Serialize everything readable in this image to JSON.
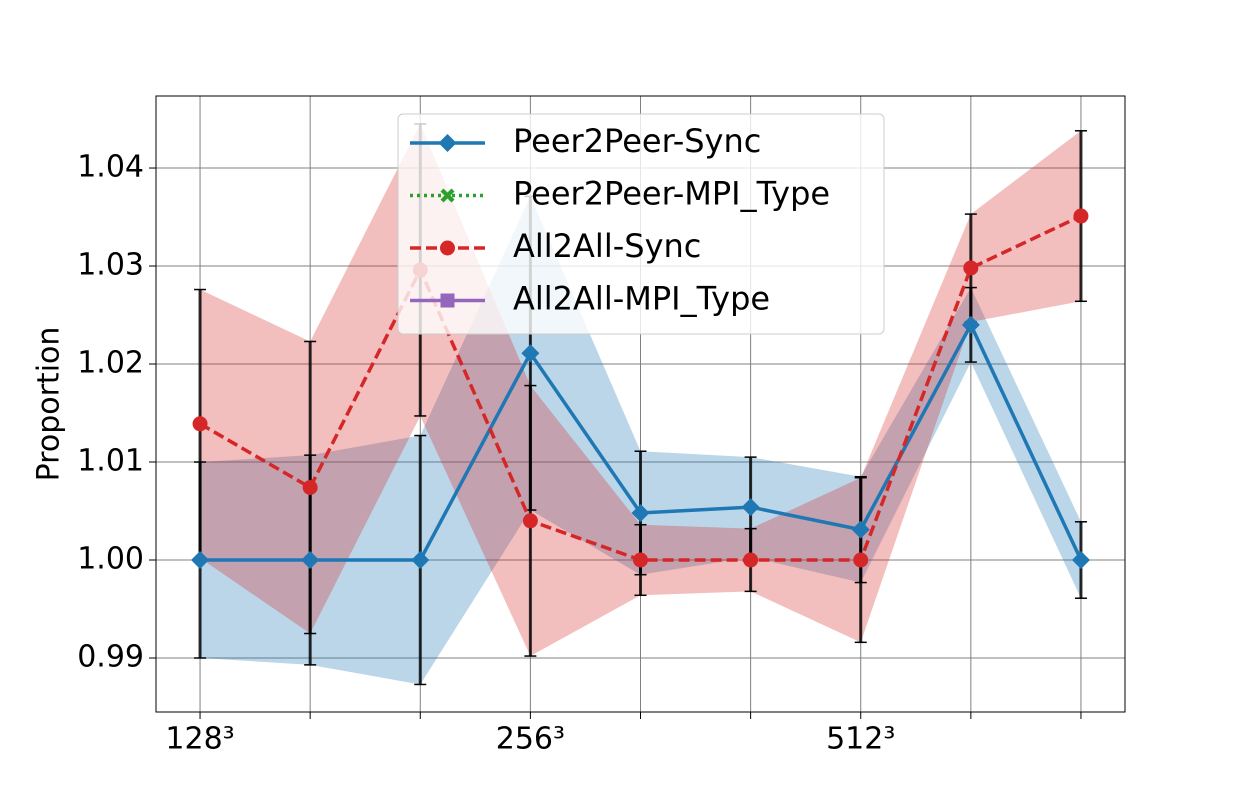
{
  "chart_data": {
    "type": "line",
    "ylabel": "Proportion",
    "categories": [
      "128³",
      null,
      null,
      "256³",
      null,
      null,
      "512³",
      null,
      null
    ],
    "ylim": [
      0.98449,
      1.04735
    ],
    "yticks": [
      {
        "value": 0.99,
        "label": "0.99"
      },
      {
        "value": 1.0,
        "label": "1.00"
      },
      {
        "value": 1.01,
        "label": "1.01"
      },
      {
        "value": 1.02,
        "label": "1.02"
      },
      {
        "value": 1.03,
        "label": "1.03"
      },
      {
        "value": 1.04,
        "label": "1.04"
      }
    ],
    "grid": true,
    "legend": "upper center",
    "series": [
      {
        "name": "Peer2Peer-Sync",
        "color": "#1f77b4",
        "marker": "diamond",
        "linestyle": "solid",
        "values": [
          1.0,
          1.0,
          1.0,
          1.0211,
          1.0048,
          1.0054,
          1.0031,
          1.024,
          1.0
        ],
        "errors": [
          0.01,
          0.0107,
          0.0127,
          0.016,
          0.0063,
          0.0051,
          0.0054,
          0.0038,
          0.0039
        ]
      },
      {
        "name": "Peer2Peer-MPI_Type",
        "color": "#2ca02c",
        "marker": "x",
        "linestyle": "dotted",
        "values": [
          null,
          null,
          null,
          null,
          null,
          null,
          null,
          null,
          null
        ]
      },
      {
        "name": "All2All-Sync",
        "color": "#d62728",
        "marker": "circle",
        "linestyle": "dashed",
        "values": [
          1.0139,
          1.0074,
          1.0296,
          1.004,
          1.0,
          1.0,
          1.0,
          1.0298,
          1.0351
        ],
        "errors": [
          0.0137,
          0.0149,
          0.0149,
          0.0138,
          0.0036,
          0.0032,
          0.0084,
          0.0055,
          0.0087
        ]
      },
      {
        "name": "All2All-MPI_Type",
        "color": "#9467bd",
        "marker": "square",
        "linestyle": "solid",
        "values": [
          null,
          null,
          null,
          null,
          null,
          null,
          null,
          null,
          null
        ]
      }
    ]
  }
}
